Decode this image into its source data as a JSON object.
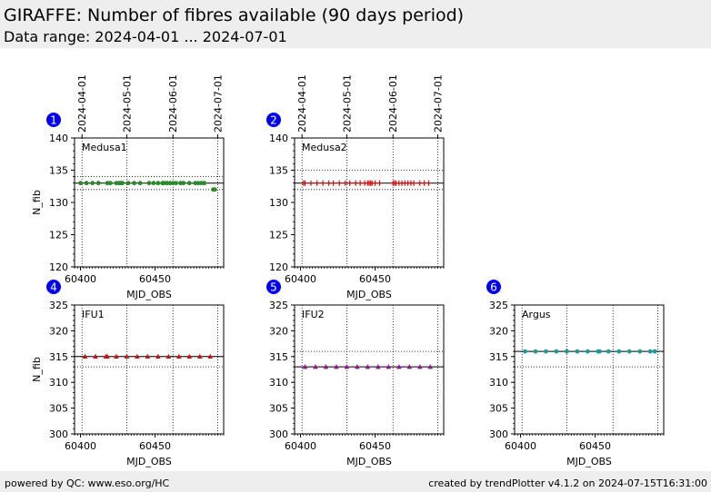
{
  "header": {
    "title": "GIRAFFE: Number of fibres available (90 days period)",
    "subtitle": "Data range: 2024-04-01 ... 2024-07-01"
  },
  "footer": {
    "left": "powered by QC: www.eso.org/HC",
    "right": "created by trendPlotter v4.1.2 on 2024-07-15T16:31:00"
  },
  "colors": {
    "badge": "#0000ee",
    "reference_line": "#000000",
    "grid": "#000000"
  },
  "chart_data": [
    {
      "type": "scatter",
      "panel": "1",
      "label": "Medusa1",
      "xlabel": "MJD_OBS",
      "ylabel": "N_fib",
      "xlim": [
        60396,
        60496
      ],
      "ylim": [
        120,
        140
      ],
      "xticks": [
        60400,
        60450
      ],
      "yticks": [
        120,
        125,
        130,
        135,
        140
      ],
      "top_axis_dates": [
        "2024-04-01",
        "2024-05-01",
        "2024-06-01",
        "2024-07-01"
      ],
      "reference_lines": [
        133
      ],
      "limit_lines": [
        132,
        134
      ],
      "grid": "vertical dotted at month boundaries",
      "marker": "circle",
      "color": "#2a8a2a",
      "x": [
        60400,
        60404,
        60408,
        60412,
        60418,
        60420,
        60424,
        60426,
        60427,
        60428,
        60432,
        60436,
        60440,
        60446,
        60449,
        60452,
        60455,
        60456,
        60458,
        60460,
        60462,
        60464,
        60467,
        60469,
        60473,
        60477,
        60479,
        60481,
        60483,
        60489,
        60490
      ],
      "y": [
        133,
        133,
        133,
        133,
        133,
        133,
        133,
        133,
        133,
        133,
        133,
        133,
        133,
        133,
        133,
        133,
        133,
        133,
        133,
        133,
        133,
        133,
        133,
        133,
        133,
        133,
        133,
        133,
        133,
        132,
        132
      ]
    },
    {
      "type": "scatter",
      "panel": "2",
      "label": "Medusa2",
      "xlabel": "MJD_OBS",
      "ylabel": "",
      "xlim": [
        60396,
        60496
      ],
      "ylim": [
        120,
        140
      ],
      "xticks": [
        60400,
        60450
      ],
      "yticks": [
        120,
        125,
        130,
        135,
        140
      ],
      "top_axis_dates": [
        "2024-04-01",
        "2024-05-01",
        "2024-06-01",
        "2024-07-01"
      ],
      "reference_lines": [
        133
      ],
      "limit_lines": [
        132,
        135
      ],
      "grid": "vertical dotted at month boundaries",
      "marker": "plus",
      "color": "#cc1111",
      "x": [
        60402,
        60403,
        60407,
        60411,
        60415,
        60419,
        60422,
        60426,
        60430,
        60433,
        60437,
        60440,
        60443,
        60445,
        60446,
        60447,
        60448,
        60450,
        60453,
        60462,
        60463,
        60464,
        60466,
        60468,
        60470,
        60472,
        60474,
        60476,
        60480,
        60483,
        60486
      ],
      "y": [
        133,
        133,
        133,
        133,
        133,
        133,
        133,
        133,
        133,
        133,
        133,
        133,
        133,
        133,
        133,
        133,
        133,
        133,
        133,
        133,
        133,
        133,
        133,
        133,
        133,
        133,
        133,
        133,
        133,
        133,
        133
      ]
    },
    {
      "type": "scatter",
      "panel": "4",
      "label": "IFU1",
      "xlabel": "MJD_OBS",
      "ylabel": "N_fib",
      "xlim": [
        60396,
        60496
      ],
      "ylim": [
        300,
        325
      ],
      "xticks": [
        60400,
        60450
      ],
      "yticks": [
        300,
        305,
        310,
        315,
        320,
        325
      ],
      "reference_lines": [
        315
      ],
      "limit_lines": [
        313,
        315
      ],
      "grid": "vertical dotted at month boundaries",
      "marker": "triangle",
      "color": "#cc1111",
      "x": [
        60403,
        60410,
        60417,
        60418,
        60424,
        60431,
        60438,
        60445,
        60452,
        60459,
        60466,
        60473,
        60480,
        60487
      ],
      "y": [
        315,
        315,
        315,
        315,
        315,
        315,
        315,
        315,
        315,
        315,
        315,
        315,
        315,
        315
      ]
    },
    {
      "type": "scatter",
      "panel": "5",
      "label": "IFU2",
      "xlabel": "MJD_OBS",
      "ylabel": "",
      "xlim": [
        60396,
        60496
      ],
      "ylim": [
        300,
        325
      ],
      "xticks": [
        60400,
        60450
      ],
      "yticks": [
        300,
        305,
        310,
        315,
        320,
        325
      ],
      "reference_lines": [
        313
      ],
      "limit_lines": [
        313,
        316
      ],
      "grid": "vertical dotted at month boundaries",
      "marker": "triangle",
      "color": "#8b1a8b",
      "x": [
        60403,
        60410,
        60417,
        60424,
        60431,
        60438,
        60445,
        60452,
        60459,
        60466,
        60473,
        60480,
        60487
      ],
      "y": [
        313,
        313,
        313,
        313,
        313,
        313,
        313,
        313,
        313,
        313,
        313,
        313,
        313
      ]
    },
    {
      "type": "scatter",
      "panel": "6",
      "label": "Argus",
      "xlabel": "MJD_OBS",
      "ylabel": "",
      "xlim": [
        60396,
        60496
      ],
      "ylim": [
        300,
        325
      ],
      "xticks": [
        60400,
        60450
      ],
      "yticks": [
        300,
        305,
        310,
        315,
        320,
        325
      ],
      "reference_lines": [
        316
      ],
      "limit_lines": [
        313,
        316
      ],
      "grid": "vertical dotted at month boundaries",
      "marker": "circle",
      "color": "#1a9a9a",
      "x": [
        60403,
        60410,
        60417,
        60424,
        60431,
        60438,
        60445,
        60452,
        60453,
        60459,
        60466,
        60473,
        60480,
        60487,
        60490
      ],
      "y": [
        316,
        316,
        316,
        316,
        316,
        316,
        316,
        316,
        316,
        316,
        316,
        316,
        316,
        316,
        316
      ]
    }
  ]
}
